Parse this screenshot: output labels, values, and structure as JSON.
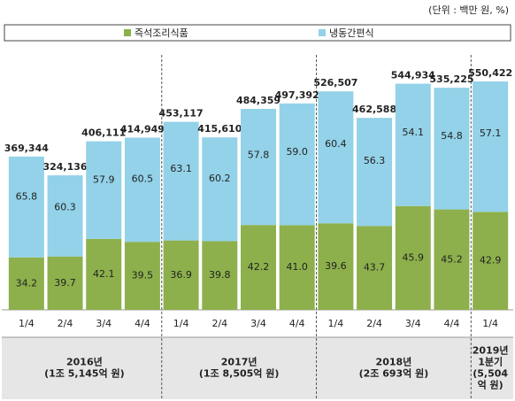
{
  "chart_data": {
    "type": "stacked_bar",
    "unit": "(단위 : 백만 원, %)",
    "categories": [
      "1/4",
      "2/4",
      "3/4",
      "4/4",
      "1/4",
      "2/4",
      "3/4",
      "4/4",
      "1/4",
      "2/4",
      "3/4",
      "4/4",
      "1/4"
    ],
    "groups": [
      {
        "lines": [
          "2016년",
          "(1조 5,145억 원)"
        ]
      },
      {
        "lines": [
          "2017년",
          "(1조 8,505억 원)"
        ]
      },
      {
        "lines": [
          "2018년",
          "(2조 693억 원)"
        ]
      },
      {
        "lines": [
          "2019년",
          "1분기",
          "(5,504",
          "억 원)"
        ]
      }
    ],
    "totals": {
      "values": [
        369344,
        324136,
        406111,
        414949,
        453117,
        415610,
        484359,
        497392,
        526507,
        462588,
        544934,
        535225,
        550422
      ],
      "value_labels": [
        "369,344",
        "324,136",
        "406,111",
        "414,949",
        "453,117",
        "415,610",
        "484,359",
        "497,392",
        "526,507",
        "462,588",
        "544,934",
        "535,225",
        "550,422"
      ]
    },
    "series": [
      {
        "name": "즉석조리식품",
        "color": "#8db04c",
        "values": [
          34.2,
          39.7,
          42.1,
          39.5,
          36.9,
          39.8,
          42.2,
          41.0,
          39.6,
          43.7,
          45.9,
          45.2,
          42.9
        ],
        "value_labels": [
          "34.2",
          "39.7",
          "42.1",
          "39.5",
          "36.9",
          "39.8",
          "42.2",
          "41.0",
          "39.6",
          "43.7",
          "45.9",
          "45.2",
          "42.9"
        ]
      },
      {
        "name": "냉동간편식",
        "color": "#93d2e8",
        "values": [
          65.8,
          60.3,
          57.9,
          60.5,
          63.1,
          60.2,
          57.8,
          59.0,
          60.4,
          56.3,
          54.1,
          54.8,
          57.1
        ],
        "value_labels": [
          "65.8",
          "60.3",
          "57.9",
          "60.5",
          "63.1",
          "60.2",
          "57.8",
          "59.0",
          "60.4",
          "56.3",
          "54.1",
          "54.8",
          "57.1"
        ]
      }
    ]
  }
}
